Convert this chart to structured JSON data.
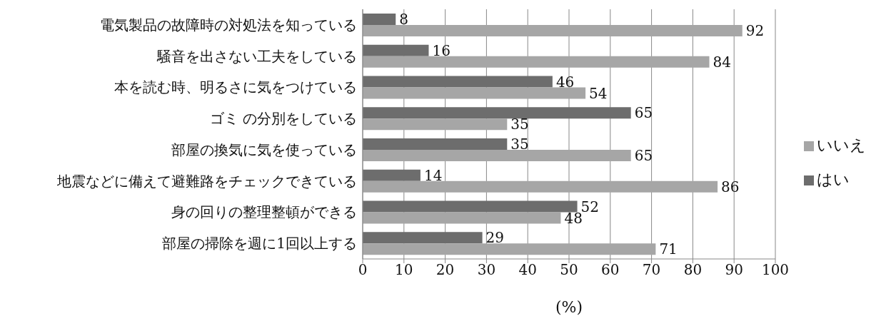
{
  "chart_data": {
    "type": "bar",
    "orientation": "horizontal",
    "xlabel": "(%)",
    "categories": [
      "電気製品の故障時の対処法を知っている",
      "騒音を出さない工夫をしている",
      "本を読む時、明るさに気をつけている",
      "ゴミ の分別をしている",
      "部屋の換気に気を使っている",
      "地震などに備えて避難路をチェックできている",
      "身の回りの整理整頓ができる",
      "部屋の掃除を週に1回以上する"
    ],
    "series": [
      {
        "name": "はい",
        "color": "#6d6d6d",
        "values": [
          8,
          16,
          46,
          65,
          35,
          14,
          52,
          29
        ]
      },
      {
        "name": "いいえ",
        "color": "#a6a6a6",
        "values": [
          92,
          84,
          54,
          35,
          65,
          86,
          48,
          71
        ]
      }
    ],
    "xlim": [
      0,
      100
    ],
    "xticks": [
      0,
      10,
      20,
      30,
      40,
      50,
      60,
      70,
      80,
      90,
      100
    ],
    "grid": "x",
    "legend": "right",
    "data_labels": true
  }
}
